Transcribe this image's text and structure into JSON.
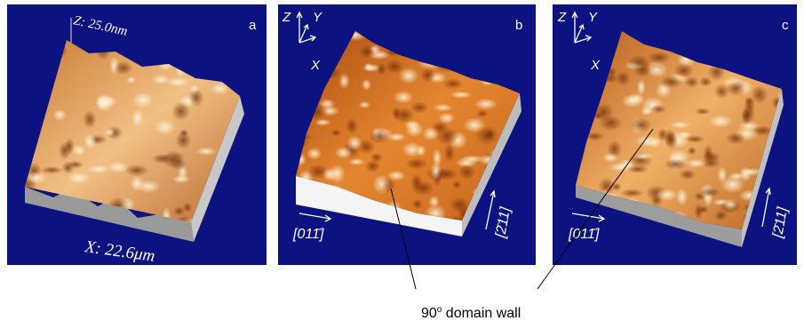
{
  "panels": [
    {
      "label": "a",
      "z_scale": "Z: 25.0nm",
      "x_scale": "X: 22.6μm"
    },
    {
      "label": "b",
      "axes": {
        "z": "Z",
        "y": "Y",
        "x": "X"
      },
      "directions": [
        "[011̄]",
        "[2̄11]"
      ]
    },
    {
      "label": "c",
      "axes": {
        "z": "Z",
        "y": "Y",
        "x": "X"
      },
      "directions": [
        "[011̄]",
        "[2̄11]"
      ]
    }
  ],
  "caption": {
    "number": "90",
    "superscript": "o",
    "text": " domain wall"
  }
}
